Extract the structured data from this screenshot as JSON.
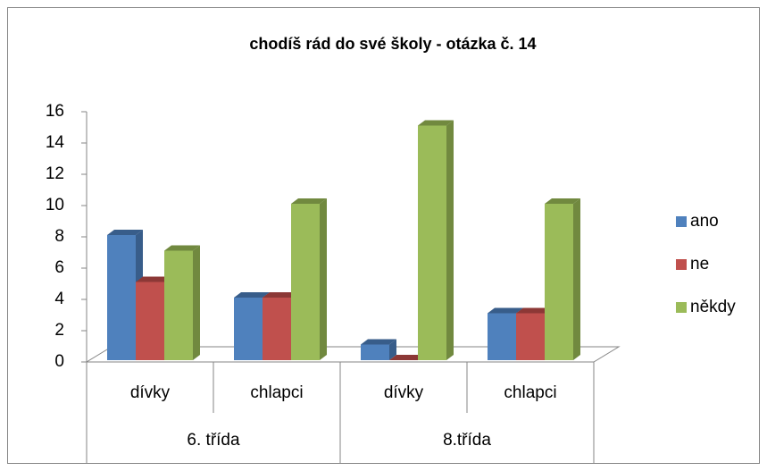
{
  "chart_data": {
    "type": "bar3d",
    "title": "chodíš rád do své školy - otázka č. 14",
    "categories": [
      "dívky",
      "chlapci",
      "dívky",
      "chlapci"
    ],
    "groups": [
      "6. třída",
      "8.třída"
    ],
    "series": [
      {
        "name": "ano",
        "color": "#4f81bd",
        "side": "#385d8a",
        "values": [
          8,
          4,
          1,
          3
        ]
      },
      {
        "name": "ne",
        "color": "#c0504d",
        "side": "#8c3836",
        "values": [
          5,
          4,
          0,
          3
        ]
      },
      {
        "name": "někdy",
        "color": "#9bbb59",
        "side": "#71893f",
        "values": [
          7,
          10,
          15,
          10
        ]
      }
    ],
    "ylim": [
      0,
      16
    ],
    "yticks": [
      0,
      2,
      4,
      6,
      8,
      10,
      12,
      14,
      16
    ],
    "legend": "right"
  }
}
